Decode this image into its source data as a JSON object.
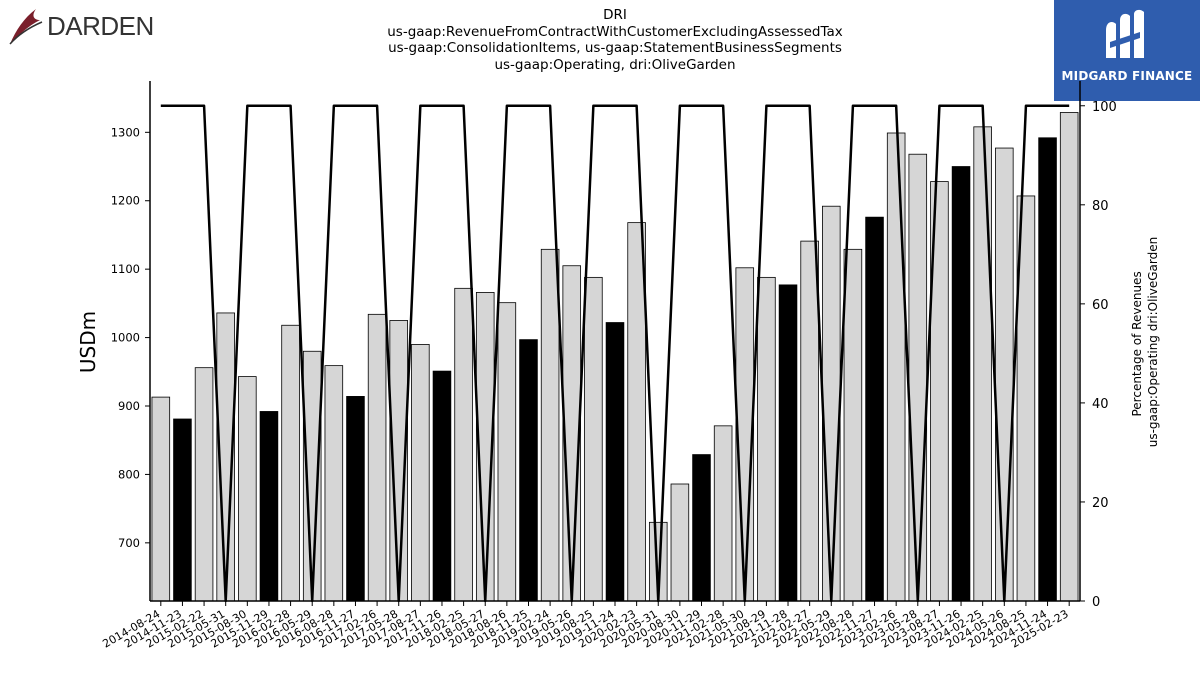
{
  "header": {
    "title_lines": [
      "DRI",
      "us-gaap:RevenueFromContractWithCustomerExcludingAssessedTax",
      "us-gaap:ConsolidationItems, us-gaap:StatementBusinessSegments",
      "us-gaap:Operating, dri:OliveGarden"
    ]
  },
  "logos": {
    "left_brand": "DARDEN",
    "right_brand": "MIDGARD FINANCE"
  },
  "colors": {
    "bar_default": "#d6d6d6",
    "bar_highlight": "#000000",
    "line": "#000000",
    "right_logo_bg": "#2f5dae"
  },
  "chart_data": {
    "type": "bar",
    "title": "DRI",
    "ylabel": "USDm",
    "y2label_lines": [
      "Percentage of Revenues",
      "us-gaap:Operating dri:OliveGarden"
    ],
    "ylim": [
      615,
      1375
    ],
    "y2lim": [
      0,
      105
    ],
    "yticks": [
      700,
      800,
      900,
      1000,
      1100,
      1200,
      1300
    ],
    "y2ticks": [
      0,
      20,
      40,
      60,
      80,
      100
    ],
    "grid": false,
    "categories": [
      "2014-08-24",
      "2014-11-23",
      "2015-02-22",
      "2015-05-31",
      "2015-08-30",
      "2015-11-29",
      "2016-02-28",
      "2016-05-29",
      "2016-08-28",
      "2016-11-27",
      "2017-02-26",
      "2017-05-28",
      "2017-08-27",
      "2017-11-26",
      "2018-02-25",
      "2018-05-27",
      "2018-08-26",
      "2018-11-25",
      "2019-02-24",
      "2019-05-26",
      "2019-08-25",
      "2019-11-24",
      "2020-02-23",
      "2020-05-31",
      "2020-08-30",
      "2020-11-29",
      "2021-02-28",
      "2021-05-30",
      "2021-08-29",
      "2021-11-28",
      "2022-02-27",
      "2022-05-29",
      "2022-08-28",
      "2022-11-27",
      "2023-02-26",
      "2023-05-28",
      "2023-08-27",
      "2023-11-26",
      "2024-02-25",
      "2024-05-26",
      "2024-08-25",
      "2024-11-24",
      "2025-02-23"
    ],
    "series": [
      {
        "kind": "bar",
        "axis": "left",
        "values": [
          913,
          881,
          956,
          1036,
          943,
          892,
          1018,
          980,
          959,
          914,
          1034,
          1025,
          990,
          951,
          1072,
          1066,
          1051,
          997,
          1129,
          1105,
          1088,
          1022,
          1168,
          730,
          786,
          829,
          871,
          1102,
          1088,
          1077,
          1141,
          1192,
          1129,
          1176,
          1299,
          1268,
          1228,
          1250,
          1308,
          1277,
          1207,
          1292,
          1329
        ],
        "highlight": [
          false,
          true,
          false,
          false,
          false,
          true,
          false,
          false,
          false,
          true,
          false,
          false,
          false,
          true,
          false,
          false,
          false,
          true,
          false,
          false,
          false,
          true,
          false,
          false,
          false,
          true,
          false,
          false,
          false,
          true,
          false,
          false,
          false,
          true,
          false,
          false,
          false,
          true,
          false,
          false,
          false,
          true,
          false
        ]
      },
      {
        "kind": "line",
        "axis": "right",
        "values": [
          100,
          100,
          100,
          0,
          100,
          100,
          100,
          0,
          100,
          100,
          100,
          0,
          100,
          100,
          100,
          0,
          100,
          100,
          100,
          0,
          100,
          100,
          100,
          0,
          100,
          100,
          100,
          0,
          100,
          100,
          100,
          0,
          100,
          100,
          100,
          0,
          100,
          100,
          100,
          0,
          100,
          100,
          100
        ]
      }
    ]
  }
}
